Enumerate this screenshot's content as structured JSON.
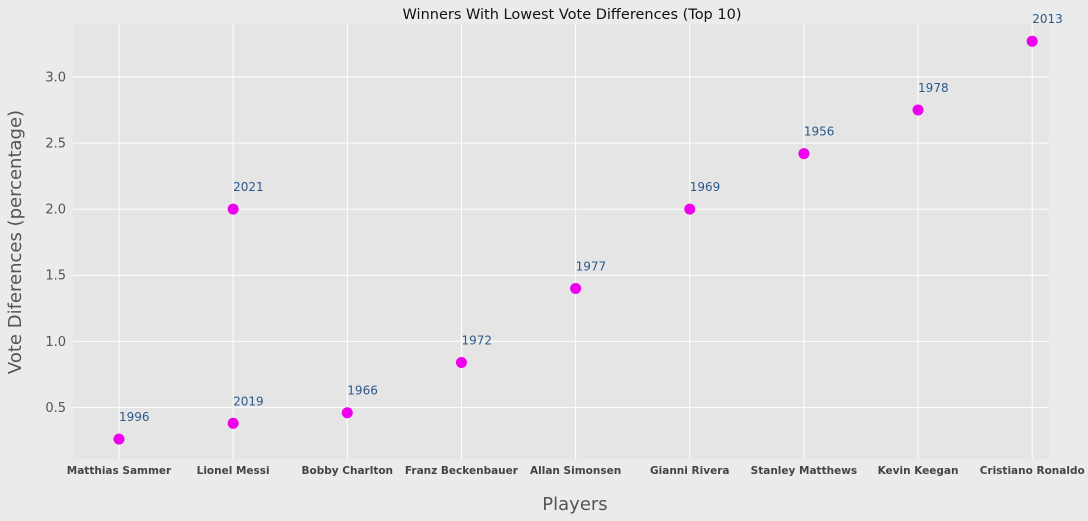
{
  "chart_data": {
    "type": "scatter",
    "title": "Winners With Lowest Vote Differences (Top 10)",
    "xlabel": "Players",
    "ylabel": "Vote Diferences (percentage)",
    "categories": [
      "Matthias Sammer",
      "Lionel Messi",
      "Bobby Charlton",
      "Franz Beckenbauer",
      "Allan Simonsen",
      "Gianni Rivera",
      "Stanley Matthews",
      "Kevin Keegan",
      "Cristiano Ronaldo"
    ],
    "points": [
      {
        "player": "Matthias Sammer",
        "year": "1996",
        "value": 0.26
      },
      {
        "player": "Lionel Messi",
        "year": "2019",
        "value": 0.38
      },
      {
        "player": "Bobby Charlton",
        "year": "1966",
        "value": 0.46
      },
      {
        "player": "Franz Beckenbauer",
        "year": "1972",
        "value": 0.84
      },
      {
        "player": "Allan Simonsen",
        "year": "1977",
        "value": 1.4
      },
      {
        "player": "Gianni Rivera",
        "year": "1969",
        "value": 2.0
      },
      {
        "player": "Stanley Matthews",
        "year": "1956",
        "value": 2.42
      },
      {
        "player": "Kevin Keegan",
        "year": "1978",
        "value": 2.75
      },
      {
        "player": "Cristiano Ronaldo",
        "year": "2013",
        "value": 3.27
      },
      {
        "player": "Lionel Messi",
        "year": "2021",
        "value": 2.0
      }
    ],
    "yticks": [
      0.5,
      1.0,
      1.5,
      2.0,
      2.5,
      3.0
    ],
    "ylim": [
      0.11,
      3.4
    ],
    "grid": true,
    "colors": {
      "marker": "#ee00ee",
      "label": "#2a5a8a",
      "plot_bg": "#e5e5e5",
      "grid": "#ffffff"
    }
  }
}
